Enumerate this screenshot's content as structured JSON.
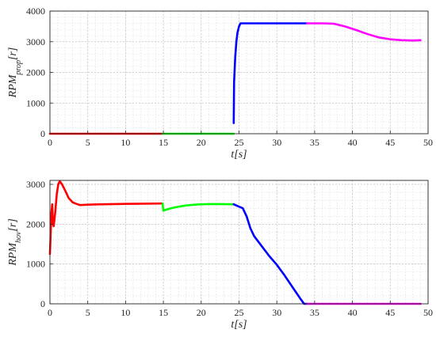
{
  "chart_data": [
    {
      "type": "line",
      "xlabel": "t[s]",
      "ylabel": "RPM_prop[r]",
      "ylabel_main": "RPM",
      "ylabel_sub": "prop",
      "ylabel_suffix": "[r]",
      "xlabel_main": "t",
      "xlabel_suffix": "[s]",
      "xlim": [
        0,
        50
      ],
      "ylim": [
        0,
        4000
      ],
      "xticks": [
        0,
        5,
        10,
        15,
        20,
        25,
        30,
        35,
        40,
        45,
        50
      ],
      "yticks": [
        0,
        1000,
        2000,
        3000,
        4000
      ],
      "grid": true,
      "minor_grid": true,
      "series": [
        {
          "color": "#ff0000",
          "x": [
            0,
            14.9
          ],
          "y": [
            0,
            0
          ]
        },
        {
          "color": "#00ff00",
          "x": [
            14.9,
            24.3
          ],
          "y": [
            0,
            0
          ]
        },
        {
          "color": "#0000ff",
          "x": [
            24.3,
            24.35,
            24.5,
            24.65,
            24.8,
            25.0,
            25.2,
            34.0
          ],
          "y": [
            350,
            1700,
            2500,
            3000,
            3300,
            3500,
            3600,
            3600
          ]
        },
        {
          "color": "#ff00ff",
          "x": [
            34.0,
            36.0,
            37.5,
            39.0,
            40.5,
            42.0,
            43.5,
            45.0,
            46.5,
            48.0,
            49.0
          ],
          "y": [
            3600,
            3600,
            3590,
            3500,
            3380,
            3250,
            3140,
            3080,
            3050,
            3040,
            3050
          ]
        }
      ]
    },
    {
      "type": "line",
      "xlabel": "t[s]",
      "ylabel": "RPM_hov[r]",
      "ylabel_main": "RPM",
      "ylabel_sub": "hov",
      "ylabel_suffix": "[r]",
      "xlabel_main": "t",
      "xlabel_suffix": "[s]",
      "xlim": [
        0,
        50
      ],
      "ylim": [
        0,
        3100
      ],
      "xticks": [
        0,
        5,
        10,
        15,
        20,
        25,
        30,
        35,
        40,
        45,
        50
      ],
      "yticks": [
        0,
        1000,
        2000,
        3000
      ],
      "grid": true,
      "minor_grid": true,
      "series": [
        {
          "color": "#ff0000",
          "x": [
            0,
            0.1,
            0.2,
            0.3,
            0.4,
            0.5,
            0.7,
            0.9,
            1.1,
            1.3,
            1.6,
            2.0,
            2.5,
            3.0,
            3.5,
            4.0,
            5.0,
            7.0,
            10.0,
            14.9
          ],
          "y": [
            1250,
            1800,
            2300,
            2500,
            2000,
            1950,
            2300,
            2750,
            3000,
            3080,
            3000,
            2850,
            2650,
            2550,
            2510,
            2480,
            2490,
            2500,
            2510,
            2520
          ]
        },
        {
          "color": "#00ff00",
          "x": [
            14.9,
            15.0,
            15.3,
            16.0,
            17.0,
            18.0,
            19.5,
            21.0,
            22.5,
            24.0,
            24.3
          ],
          "y": [
            2520,
            2340,
            2360,
            2400,
            2440,
            2470,
            2495,
            2505,
            2505,
            2500,
            2500
          ]
        },
        {
          "color": "#0000ff",
          "x": [
            24.3,
            25.0,
            25.5,
            26.0,
            26.5,
            27.0,
            28.0,
            29.0,
            30.0,
            31.0,
            32.0,
            33.0,
            33.6,
            34.0
          ],
          "y": [
            2500,
            2440,
            2400,
            2200,
            1900,
            1700,
            1450,
            1200,
            980,
            720,
            440,
            160,
            0,
            0
          ]
        },
        {
          "color": "#ff00ff",
          "x": [
            34.0,
            49.0
          ],
          "y": [
            0,
            0
          ]
        }
      ]
    }
  ]
}
